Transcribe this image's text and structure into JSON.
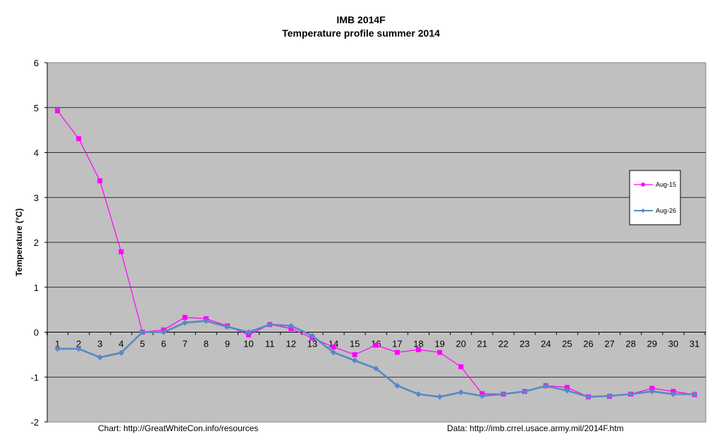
{
  "chart_data": {
    "type": "line",
    "title": "IMB 2014F",
    "subtitle": "Temperature profile summer 2014",
    "ylabel": "Temperature (°C)",
    "xlabel": "",
    "ylim": [
      -2,
      6
    ],
    "yticks": [
      "-2",
      "-1",
      "0",
      "1",
      "2",
      "3",
      "4",
      "5",
      "6"
    ],
    "categories": [
      "1",
      "2",
      "3",
      "4",
      "5",
      "6",
      "7",
      "8",
      "9",
      "10",
      "11",
      "12",
      "13",
      "14",
      "15",
      "16",
      "17",
      "18",
      "19",
      "20",
      "21",
      "22",
      "23",
      "24",
      "25",
      "26",
      "27",
      "28",
      "29",
      "30",
      "31"
    ],
    "grid": true,
    "legend_position": "right",
    "plot_background": "#c0c0c0",
    "series": [
      {
        "name": "Aug-15",
        "color": "#ff00ff",
        "marker": "square",
        "values": [
          4.93,
          4.31,
          3.37,
          1.79,
          0.0,
          0.05,
          0.33,
          0.3,
          0.14,
          -0.06,
          0.17,
          0.08,
          -0.13,
          -0.33,
          -0.5,
          -0.29,
          -0.45,
          -0.39,
          -0.45,
          -0.77,
          -1.37,
          -1.38,
          -1.32,
          -1.19,
          -1.23,
          -1.44,
          -1.43,
          -1.38,
          -1.25,
          -1.32,
          -1.39
        ]
      },
      {
        "name": "Aug-26",
        "color": "#5b87c4",
        "marker": "diamond",
        "values": [
          -0.37,
          -0.37,
          -0.56,
          -0.46,
          0.0,
          0.0,
          0.21,
          0.25,
          0.12,
          0.0,
          0.17,
          0.14,
          -0.08,
          -0.45,
          -0.63,
          -0.81,
          -1.19,
          -1.38,
          -1.44,
          -1.34,
          -1.42,
          -1.38,
          -1.32,
          -1.2,
          -1.3,
          -1.44,
          -1.42,
          -1.38,
          -1.32,
          -1.38,
          -1.38
        ]
      }
    ]
  },
  "footer": {
    "left": "Chart: http://GreatWhiteCon.info/resources",
    "right": "Data:  http://imb.crrel.usace.army.mil/2014F.htm"
  }
}
